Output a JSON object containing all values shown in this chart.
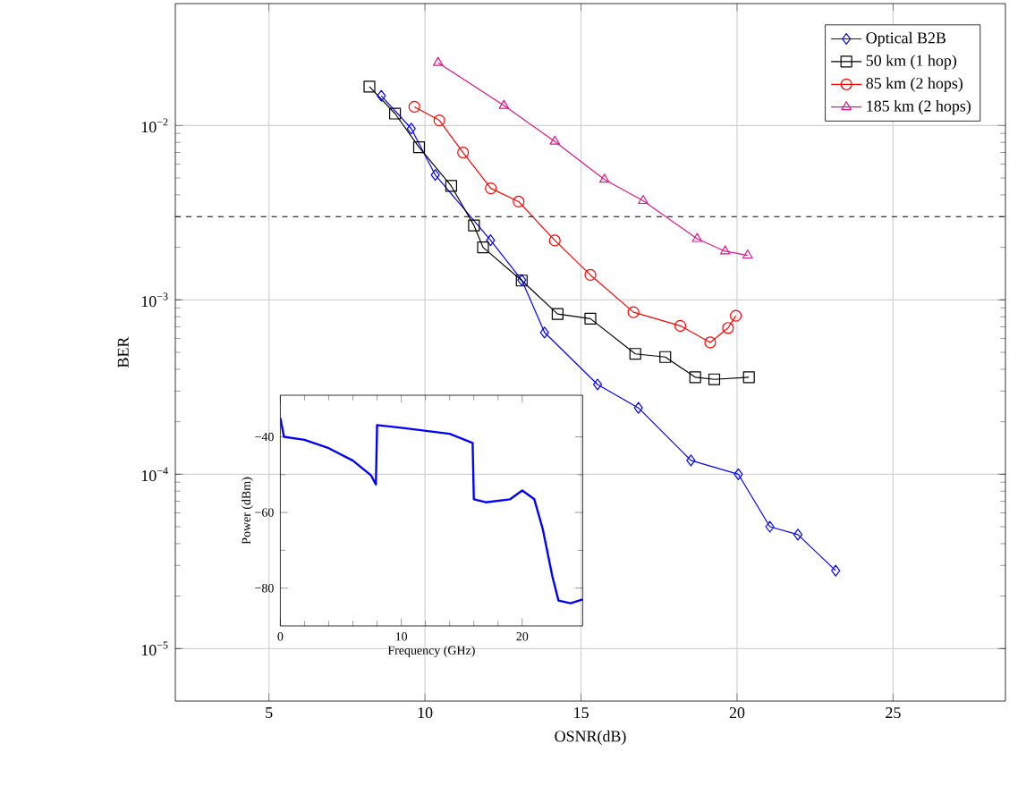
{
  "chart_data": [
    {
      "type": "line",
      "xlabel": "OSNR(dB)",
      "ylabel": "BER",
      "log": "y",
      "grid": true,
      "legend": "top right",
      "xlim": [
        2,
        28.6
      ],
      "ylim": [
        5e-06,
        0.05
      ],
      "xticks": [
        5,
        10,
        15,
        20,
        25
      ],
      "yticks": [
        {
          "value": 1e-05,
          "label": "10$^{−5}$"
        },
        {
          "value": 0.0001,
          "label": "10$^{−4}$"
        },
        {
          "value": 0.001,
          "label": "10$^{−3}$"
        },
        {
          "value": 0.01,
          "label": "10$^{−2}$"
        }
      ],
      "ref_lines": [
        {
          "axis": "y",
          "value": 0.003,
          "color": "#000000",
          "line_style": "dashed"
        }
      ],
      "series": [
        {
          "name": "Optical B2B",
          "color": "#0000ff",
          "marker": "diamond",
          "x": [
            8.6,
            9.56,
            10.33,
            12.1,
            13.1,
            13.83,
            15.53,
            16.84,
            18.52,
            20.04,
            21.05,
            21.95,
            23.16
          ],
          "values": [
            0.0148,
            0.0096,
            0.0052,
            0.0022,
            0.0013,
            0.00065,
            0.000327,
            0.00024,
            0.00012,
            0.0001,
            5e-05,
            4.5e-05,
            2.8e-05
          ]
        },
        {
          "name": "50 km (1 hop)",
          "color": "#000000",
          "marker": "square",
          "x": [
            8.22,
            9.04,
            9.81,
            10.84,
            11.57,
            11.86,
            13.1,
            14.25,
            15.3,
            16.74,
            17.7,
            18.66,
            19.27,
            20.38
          ],
          "values": [
            0.0167,
            0.0117,
            0.0075,
            0.0045,
            0.00267,
            0.002,
            0.00129,
            0.00083,
            0.00078,
            0.00049,
            0.00047,
            0.00036,
            0.00035,
            0.00036
          ]
        },
        {
          "name": "85 km (2 hops)",
          "color": "#ff0000",
          "marker": "circle",
          "x": [
            9.66,
            10.46,
            11.22,
            12.11,
            13.0,
            14.16,
            15.3,
            16.68,
            18.18,
            19.14,
            19.71,
            19.96
          ],
          "values": [
            0.0128,
            0.0107,
            0.007,
            0.00436,
            0.00366,
            0.00219,
            0.00139,
            0.00085,
            0.00071,
            0.00057,
            0.00069,
            0.00081
          ]
        },
        {
          "name": "185 km (2 hops)",
          "color": "#e0168c",
          "marker": "triangle",
          "x": [
            10.42,
            12.53,
            14.16,
            15.75,
            16.99,
            18.72,
            19.62,
            20.34
          ],
          "values": [
            0.0229,
            0.013,
            0.0081,
            0.0049,
            0.0037,
            0.00224,
            0.0019,
            0.0018
          ]
        }
      ]
    },
    {
      "type": "line",
      "xlabel": "Frequency (GHz)",
      "ylabel": "Power (dBm)",
      "grid": false,
      "xlim": [
        0,
        25
      ],
      "ylim": [
        -90,
        -29
      ],
      "xticks": [
        0,
        10,
        20
      ],
      "yticks": [
        {
          "value": -80,
          "label": "−80"
        },
        {
          "value": -60,
          "label": "−60"
        },
        {
          "value": -40,
          "label": "−40"
        }
      ],
      "series": [
        {
          "color": "#0000ff",
          "marker": "none",
          "x": [
            0,
            0.3,
            2,
            4,
            6,
            7.5,
            7.9,
            8.0,
            10,
            12,
            14,
            15.9,
            16.0,
            17,
            19,
            20,
            21,
            21.7,
            22.5,
            23,
            24,
            25
          ],
          "values": [
            -35,
            -40,
            -40.8,
            -43,
            -46.3,
            -50.2,
            -52.6,
            -36.9,
            -37.6,
            -38.4,
            -39.2,
            -41.6,
            -56.5,
            -57.3,
            -56.5,
            -54.2,
            -56.5,
            -64.4,
            -77,
            -83.3,
            -84,
            -83
          ]
        }
      ]
    }
  ]
}
